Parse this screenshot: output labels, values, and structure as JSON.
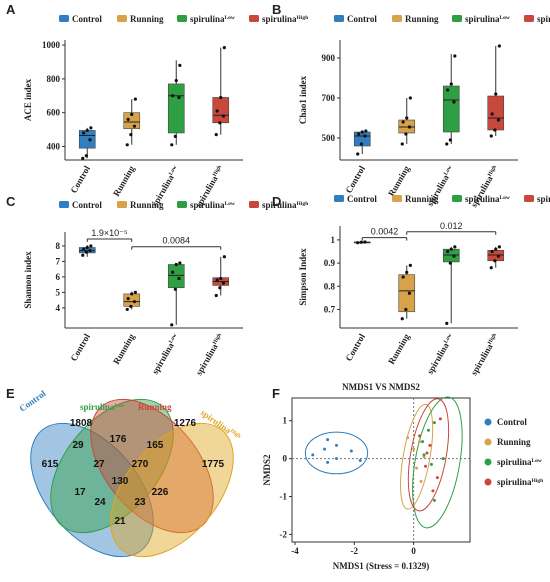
{
  "panel_letters": [
    "A",
    "B",
    "C",
    "D",
    "E",
    "F"
  ],
  "legend_groups": [
    {
      "name": "Control",
      "sup": "",
      "color": "#2f7fc1"
    },
    {
      "name": "Running",
      "sup": "",
      "color": "#d8a24a"
    },
    {
      "name": "spirulina",
      "sup": "Low",
      "color": "#2ea043"
    },
    {
      "name": "spirulina",
      "sup": "High",
      "color": "#c9483c"
    }
  ],
  "chart_data": [
    {
      "type": "box",
      "panel": "A",
      "ylabel": "ACE index",
      "yticks": [
        400,
        600,
        800,
        1000
      ],
      "ylim": [
        320,
        1030
      ],
      "categories": [
        "Control",
        "Running",
        "spirulina^Low",
        "spirulina^High"
      ],
      "boxes": [
        {
          "min": 330,
          "q1": 390,
          "median": 465,
          "q3": 495,
          "max": 510,
          "points": [
            330,
            345,
            440,
            480,
            495,
            510
          ]
        },
        {
          "min": 410,
          "q1": 505,
          "median": 545,
          "q3": 600,
          "max": 680,
          "points": [
            410,
            470,
            520,
            560,
            590,
            680
          ]
        },
        {
          "min": 410,
          "q1": 480,
          "median": 700,
          "q3": 770,
          "max": 910,
          "points": [
            410,
            460,
            690,
            700,
            790,
            880
          ]
        },
        {
          "min": 470,
          "q1": 540,
          "median": 585,
          "q3": 690,
          "max": 985,
          "points": [
            470,
            540,
            580,
            610,
            690,
            985
          ]
        }
      ]
    },
    {
      "type": "box",
      "panel": "B",
      "ylabel": "Chao1 index",
      "yticks": [
        500,
        700,
        900
      ],
      "ylim": [
        390,
        990
      ],
      "categories": [
        "Control",
        "Running",
        "spirulina^Low",
        "spirulina^High"
      ],
      "boxes": [
        {
          "min": 420,
          "q1": 460,
          "median": 510,
          "q3": 530,
          "max": 535,
          "points": [
            420,
            470,
            510,
            520,
            530,
            535
          ]
        },
        {
          "min": 470,
          "q1": 525,
          "median": 555,
          "q3": 590,
          "max": 700,
          "points": [
            470,
            520,
            555,
            580,
            600,
            700
          ]
        },
        {
          "min": 470,
          "q1": 530,
          "median": 690,
          "q3": 760,
          "max": 920,
          "points": [
            470,
            490,
            680,
            740,
            770,
            910
          ]
        },
        {
          "min": 510,
          "q1": 540,
          "median": 600,
          "q3": 710,
          "max": 960,
          "points": [
            510,
            540,
            590,
            620,
            720,
            960
          ]
        }
      ]
    },
    {
      "type": "box",
      "panel": "C",
      "ylabel": "Shannon index",
      "yticks": [
        4,
        5,
        6,
        7,
        8
      ],
      "ylim": [
        2.7,
        8.9
      ],
      "categories": [
        "Control",
        "Running",
        "spirulina^Low",
        "spirulina^High"
      ],
      "boxes": [
        {
          "min": 7.3,
          "q1": 7.55,
          "median": 7.7,
          "q3": 7.9,
          "max": 8.05,
          "points": [
            7.4,
            7.6,
            7.7,
            7.8,
            7.9,
            8.0
          ]
        },
        {
          "min": 3.9,
          "q1": 4.1,
          "median": 4.4,
          "q3": 4.9,
          "max": 5.05,
          "points": [
            3.9,
            4.1,
            4.4,
            4.6,
            4.9,
            5.0
          ]
        },
        {
          "min": 2.9,
          "q1": 5.3,
          "median": 6.1,
          "q3": 6.8,
          "max": 6.9,
          "points": [
            2.9,
            5.2,
            5.9,
            6.3,
            6.8,
            6.9
          ]
        },
        {
          "min": 4.8,
          "q1": 5.45,
          "median": 5.7,
          "q3": 5.95,
          "max": 7.3,
          "points": [
            4.8,
            5.3,
            5.6,
            5.8,
            5.9,
            7.3
          ]
        }
      ],
      "comparisons": [
        {
          "from": 0,
          "to": 1,
          "label": "1.9×10⁻⁵",
          "y": 8.45
        },
        {
          "from": 1,
          "to": 3,
          "label": "0.0084",
          "y": 7.95
        }
      ]
    },
    {
      "type": "box",
      "panel": "D",
      "ylabel": "Simpson Index",
      "yticks": [
        0.7,
        0.8,
        0.9,
        1.0
      ],
      "ylim": [
        0.62,
        1.06
      ],
      "categories": [
        "Control",
        "Running",
        "spirulina^Low",
        "spirulina^High"
      ],
      "boxes": [
        {
          "min": 0.988,
          "q1": 0.989,
          "median": 0.99,
          "q3": 0.991,
          "max": 0.992,
          "points": [
            0.988,
            0.99,
            0.991
          ]
        },
        {
          "min": 0.66,
          "q1": 0.69,
          "median": 0.78,
          "q3": 0.85,
          "max": 0.89,
          "points": [
            0.66,
            0.7,
            0.77,
            0.84,
            0.86,
            0.89
          ]
        },
        {
          "min": 0.64,
          "q1": 0.905,
          "median": 0.935,
          "q3": 0.96,
          "max": 0.97,
          "points": [
            0.64,
            0.9,
            0.93,
            0.95,
            0.96,
            0.97
          ]
        },
        {
          "min": 0.88,
          "q1": 0.91,
          "median": 0.935,
          "q3": 0.955,
          "max": 0.97,
          "points": [
            0.88,
            0.91,
            0.93,
            0.95,
            0.96,
            0.97
          ]
        }
      ],
      "comparisons": [
        {
          "from": 0,
          "to": 1,
          "label": "0.0042",
          "y": 1.01
        },
        {
          "from": 1,
          "to": 3,
          "label": "0.012",
          "y": 1.035
        }
      ]
    },
    {
      "type": "venn",
      "panel": "E",
      "sets": [
        {
          "name": "Control",
          "sup": "",
          "color": "#2f7fc1"
        },
        {
          "name": "spirulina",
          "sup": "Low",
          "color": "#2ea043"
        },
        {
          "name": "Running",
          "sup": "",
          "color": "#c9483c"
        },
        {
          "name": "spirulina",
          "sup": "High",
          "color": "#e0a520"
        }
      ],
      "counts": [
        "615",
        "1808",
        "1276",
        "1775",
        "29",
        "176",
        "165",
        "27",
        "270",
        "130",
        "17",
        "226",
        "24",
        "23",
        "21"
      ]
    },
    {
      "type": "scatter",
      "panel": "F",
      "title": "NMDS1 VS NMDS2",
      "xlabel": "NMDS1 (Stress = 0.1329)",
      "ylabel": "NMDS2",
      "xticks": [
        -4,
        -2,
        0
      ],
      "yticks": [
        -2,
        -1,
        0,
        1
      ],
      "xlim": [
        -4.1,
        1.9
      ],
      "ylim": [
        -2.2,
        1.6
      ],
      "series": [
        {
          "name": "Control",
          "color": "#2f7fc1",
          "points": [
            [
              -3.4,
              0.1
            ],
            [
              -2.9,
              0.5
            ],
            [
              -2.6,
              0.35
            ],
            [
              -2.6,
              0.0
            ],
            [
              -2.1,
              0.2
            ],
            [
              -1.8,
              -0.05
            ],
            [
              -2.9,
              -0.1
            ],
            [
              -3.0,
              0.25
            ]
          ]
        },
        {
          "name": "Running",
          "color": "#d8a24a",
          "points": [
            [
              -0.2,
              0.55
            ],
            [
              0.0,
              0.25
            ],
            [
              0.1,
              -0.25
            ],
            [
              0.2,
              0.45
            ],
            [
              0.35,
              0.05
            ],
            [
              0.25,
              -0.6
            ]
          ]
        },
        {
          "name": "spirulina",
          "sup": "Low",
          "color": "#2ea043",
          "points": [
            [
              0.3,
              0.45
            ],
            [
              0.5,
              0.75
            ],
            [
              0.6,
              -0.15
            ],
            [
              0.7,
              0.95
            ],
            [
              1.0,
              0.0
            ],
            [
              0.7,
              -1.1
            ],
            [
              0.35,
              0.1
            ]
          ]
        },
        {
          "name": "spirulina",
          "sup": "High",
          "color": "#c9483c",
          "points": [
            [
              0.2,
              0.6
            ],
            [
              0.4,
              -0.2
            ],
            [
              0.55,
              0.35
            ],
            [
              0.8,
              -0.5
            ],
            [
              0.9,
              1.05
            ],
            [
              0.45,
              0.15
            ],
            [
              0.65,
              -0.85
            ]
          ]
        }
      ],
      "legend": [
        "Control",
        "Running",
        "spirulina^Low",
        "spirulina^High"
      ]
    }
  ]
}
